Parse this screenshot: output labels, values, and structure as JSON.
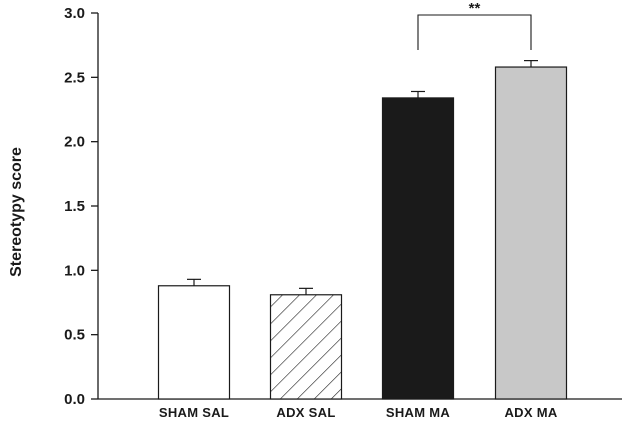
{
  "chart_data": {
    "type": "bar",
    "title": "",
    "xlabel": "",
    "ylabel": "Stereotypy score",
    "ylim": [
      0,
      3.0
    ],
    "yticks": [
      "0.0",
      "0.5",
      "1.0",
      "1.5",
      "2.0",
      "2.5",
      "3.0"
    ],
    "grid": false,
    "categories": [
      "SHAM SAL",
      "ADX SAL",
      "SHAM MA",
      "ADX MA"
    ],
    "values": [
      0.88,
      0.81,
      2.34,
      2.58
    ],
    "errors": [
      0.05,
      0.05,
      0.05,
      0.05
    ],
    "fills": [
      "white",
      "hatched",
      "black",
      "light gray"
    ],
    "colors": [
      "#ffffff",
      "#ffffff",
      "#1a1a1a",
      "#c8c8c8"
    ],
    "significance": {
      "between": [
        "SHAM MA",
        "ADX MA"
      ],
      "label": "**"
    }
  }
}
